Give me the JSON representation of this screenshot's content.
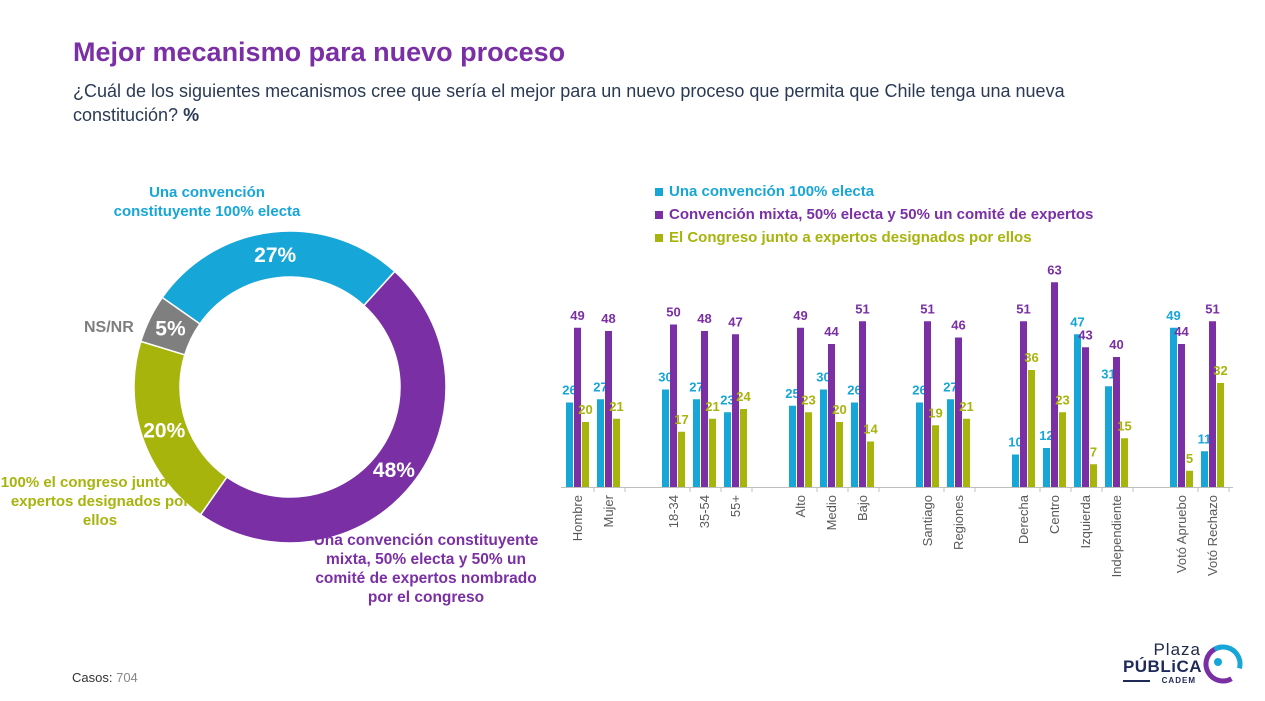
{
  "header": {
    "title": "Mejor mecanismo para nuevo proceso",
    "subtitle": "¿Cuál de los siguientes mecanismos cree que sería el mejor para un nuevo proceso que permita que Chile tenga una nueva constitución?",
    "subtitle_unit": "%"
  },
  "colors": {
    "convencion": "#17a6d8",
    "mixta": "#7b2fa5",
    "congreso": "#a7b40c",
    "nsnr": "#7f7f7f",
    "title": "#7b2fa5"
  },
  "donut": {
    "label_convencion": "Una convención constituyente 100% electa",
    "label_nsnr": "NS/NR",
    "label_congreso": "100% el congreso junto con expertos designados por ellos",
    "label_mixta": "Una convención constituyente mixta, 50% electa y 50% un comité de expertos nombrado por el congreso"
  },
  "chart_data": [
    {
      "type": "pie",
      "slices": [
        {
          "name": "Una convención constituyente 100% electa",
          "value": 27,
          "label": "27%",
          "color": "#17a6d8"
        },
        {
          "name": "Una convención constituyente mixta, 50% electa y 50% un comité de expertos nombrado por el congreso",
          "value": 48,
          "label": "48%",
          "color": "#7b2fa5"
        },
        {
          "name": "100% el congreso junto con expertos designados por ellos",
          "value": 20,
          "label": "20%",
          "color": "#a7b40c"
        },
        {
          "name": "NS/NR",
          "value": 5,
          "label": "5%",
          "color": "#7f7f7f"
        }
      ]
    },
    {
      "type": "bar",
      "categories": [
        "Hombre",
        "Mujer",
        "18-34",
        "35-54",
        "55+",
        "Alto",
        "Medio",
        "Bajo",
        "Santiago",
        "Regiones",
        "Derecha",
        "Centro",
        "Izquierda",
        "Independiente",
        "Votó Apruebo",
        "Votó Rechazo"
      ],
      "groups": [
        2,
        3,
        3,
        2,
        4,
        2
      ],
      "series": [
        {
          "name": "Una convención 100% electa",
          "color": "#17a6d8",
          "values": [
            26,
            27,
            30,
            27,
            23,
            25,
            30,
            26,
            26,
            27,
            10,
            12,
            47,
            31,
            49,
            11
          ]
        },
        {
          "name": "Convención mixta, 50% electa y 50% un comité de expertos",
          "color": "#7b2fa5",
          "values": [
            49,
            48,
            50,
            48,
            47,
            49,
            44,
            51,
            51,
            46,
            51,
            63,
            43,
            40,
            44,
            51
          ]
        },
        {
          "name": "El Congreso junto a expertos designados por ellos",
          "color": "#a7b40c",
          "values": [
            20,
            21,
            17,
            21,
            24,
            23,
            20,
            14,
            19,
            21,
            36,
            23,
            7,
            15,
            5,
            32
          ]
        }
      ],
      "ylim": [
        0,
        65
      ]
    }
  ],
  "footer": {
    "casos_label": "Casos",
    "casos_value": "704",
    "logo_plaza": "Plaza",
    "logo_publica": "PÚBLiCA",
    "logo_cadem": "CADEM"
  }
}
